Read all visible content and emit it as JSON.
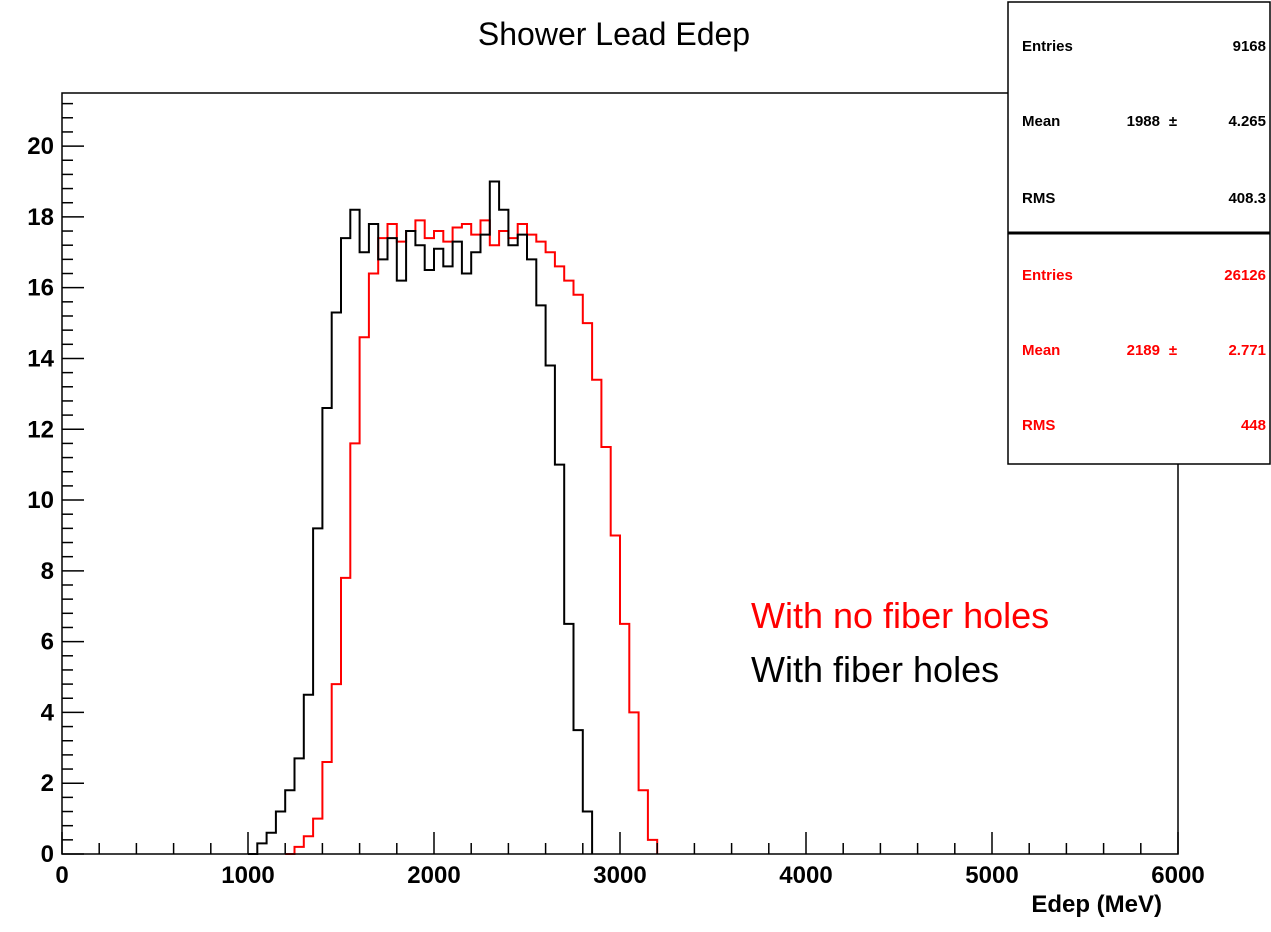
{
  "chart_data": {
    "type": "histogram",
    "title": "Shower Lead Edep",
    "xlabel": "Edep (MeV)",
    "ylabel": "",
    "xlim": [
      0,
      6000
    ],
    "ylim": [
      0,
      21.5
    ],
    "x_ticks": [
      "0",
      "1000",
      "2000",
      "3000",
      "4000",
      "5000",
      "6000"
    ],
    "y_ticks": [
      "0",
      "2",
      "4",
      "6",
      "8",
      "10",
      "12",
      "14",
      "16",
      "18",
      "20"
    ],
    "grid": false,
    "legend_position": "middle-right",
    "series": [
      {
        "name": "With fiber holes",
        "color": "#000000",
        "stats": {
          "entries_label": "Entries",
          "entries": "9168",
          "mean_label": "Mean",
          "mean": "1988",
          "mean_err": "4.265",
          "rms_label": "RMS",
          "rms": "408.3"
        },
        "points": [
          [
            1000,
            0
          ],
          [
            1050,
            0.3
          ],
          [
            1100,
            0.6
          ],
          [
            1150,
            1.2
          ],
          [
            1200,
            1.8
          ],
          [
            1250,
            2.7
          ],
          [
            1300,
            4.5
          ],
          [
            1350,
            9.2
          ],
          [
            1400,
            12.6
          ],
          [
            1450,
            15.3
          ],
          [
            1500,
            17.4
          ],
          [
            1550,
            18.2
          ],
          [
            1600,
            17.0
          ],
          [
            1650,
            17.8
          ],
          [
            1700,
            16.8
          ],
          [
            1750,
            17.4
          ],
          [
            1800,
            16.2
          ],
          [
            1850,
            17.6
          ],
          [
            1900,
            17.2
          ],
          [
            1950,
            16.5
          ],
          [
            2000,
            17.1
          ],
          [
            2050,
            16.6
          ],
          [
            2100,
            17.3
          ],
          [
            2150,
            16.4
          ],
          [
            2200,
            17.0
          ],
          [
            2250,
            17.5
          ],
          [
            2300,
            19.0
          ],
          [
            2350,
            18.2
          ],
          [
            2400,
            17.2
          ],
          [
            2450,
            17.5
          ],
          [
            2500,
            16.8
          ],
          [
            2550,
            15.5
          ],
          [
            2600,
            13.8
          ],
          [
            2650,
            11.0
          ],
          [
            2700,
            6.5
          ],
          [
            2750,
            3.5
          ],
          [
            2800,
            1.2
          ],
          [
            2850,
            0
          ]
        ]
      },
      {
        "name": "With no fiber holes",
        "color": "#ff0000",
        "stats": {
          "entries_label": "Entries",
          "entries": "26126",
          "mean_label": "Mean",
          "mean": "2189",
          "mean_err": "2.771",
          "rms_label": "RMS",
          "rms": "448"
        },
        "points": [
          [
            1200,
            0
          ],
          [
            1250,
            0.2
          ],
          [
            1300,
            0.5
          ],
          [
            1350,
            1.0
          ],
          [
            1400,
            2.6
          ],
          [
            1450,
            4.8
          ],
          [
            1500,
            7.8
          ],
          [
            1550,
            11.6
          ],
          [
            1600,
            14.6
          ],
          [
            1650,
            16.4
          ],
          [
            1700,
            17.4
          ],
          [
            1750,
            17.8
          ],
          [
            1800,
            17.3
          ],
          [
            1850,
            17.6
          ],
          [
            1900,
            17.9
          ],
          [
            1950,
            17.4
          ],
          [
            2000,
            17.6
          ],
          [
            2050,
            17.3
          ],
          [
            2100,
            17.7
          ],
          [
            2150,
            17.8
          ],
          [
            2200,
            17.5
          ],
          [
            2250,
            17.9
          ],
          [
            2300,
            17.2
          ],
          [
            2350,
            17.6
          ],
          [
            2400,
            17.4
          ],
          [
            2450,
            17.8
          ],
          [
            2500,
            17.5
          ],
          [
            2550,
            17.3
          ],
          [
            2600,
            17.0
          ],
          [
            2650,
            16.6
          ],
          [
            2700,
            16.2
          ],
          [
            2750,
            15.8
          ],
          [
            2800,
            15.0
          ],
          [
            2850,
            13.4
          ],
          [
            2900,
            11.5
          ],
          [
            2950,
            9.0
          ],
          [
            3000,
            6.5
          ],
          [
            3050,
            4.0
          ],
          [
            3100,
            1.8
          ],
          [
            3150,
            0.4
          ],
          [
            3200,
            0
          ]
        ]
      }
    ]
  }
}
